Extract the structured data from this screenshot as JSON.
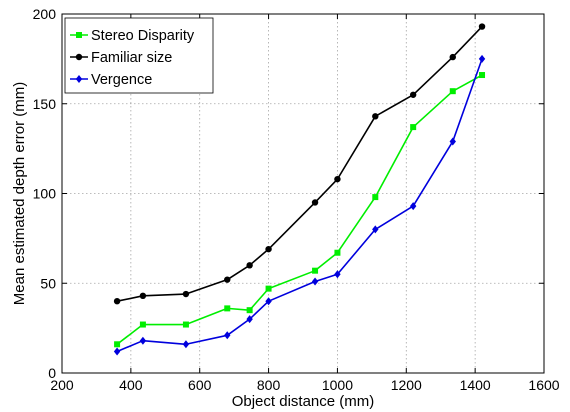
{
  "chart_data": {
    "type": "line",
    "title": "",
    "xlabel": "Object distance (mm)",
    "ylabel": "Mean estimated depth error (mm)",
    "xlim": [
      200,
      1600
    ],
    "ylim": [
      0,
      200
    ],
    "xticks": [
      200,
      400,
      600,
      800,
      1000,
      1200,
      1400,
      1600
    ],
    "yticks": [
      0,
      50,
      100,
      150,
      200
    ],
    "grid": true,
    "legend_position": "top-left",
    "series": [
      {
        "name": "Stereo Disparity",
        "color": "#00ee00",
        "marker": "square",
        "x": [
          360,
          435,
          560,
          680,
          745,
          800,
          935,
          1000,
          1110,
          1220,
          1335,
          1420
        ],
        "y": [
          16,
          27,
          27,
          36,
          35,
          47,
          57,
          67,
          98,
          137,
          157,
          166
        ]
      },
      {
        "name": "Familiar size",
        "color": "#000000",
        "marker": "circle",
        "x": [
          360,
          435,
          560,
          680,
          745,
          800,
          935,
          1000,
          1110,
          1220,
          1335,
          1420
        ],
        "y": [
          40,
          43,
          44,
          52,
          60,
          69,
          95,
          108,
          143,
          155,
          176,
          193
        ]
      },
      {
        "name": "Vergence",
        "color": "#0000dd",
        "marker": "diamond",
        "x": [
          360,
          435,
          560,
          680,
          745,
          800,
          935,
          1000,
          1110,
          1220,
          1335,
          1420
        ],
        "y": [
          12,
          18,
          16,
          21,
          30,
          40,
          51,
          55,
          80,
          93,
          129,
          175
        ]
      }
    ]
  }
}
